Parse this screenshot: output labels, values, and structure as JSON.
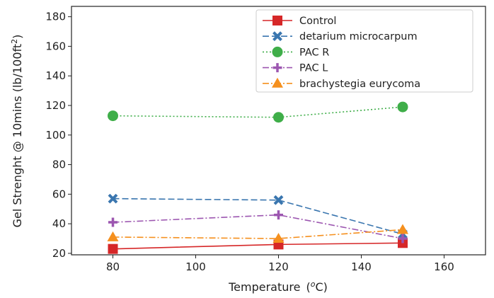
{
  "chart_data": {
    "type": "line",
    "xlabel_main": "Temperature",
    "xlabel_unit_pre": "(",
    "xlabel_unit_sup": "o",
    "xlabel_unit_post": "C)",
    "ylabel_main": "Gel Strenght @ 10mins (lb/100ft",
    "ylabel_sup": "2",
    "ylabel_post": ")",
    "xlim": [
      70,
      170
    ],
    "ylim": [
      19,
      187
    ],
    "xticks": [
      80,
      100,
      120,
      140,
      160
    ],
    "yticks": [
      20,
      40,
      60,
      80,
      100,
      120,
      140,
      160,
      180
    ],
    "grid": false,
    "legend_position": "top-right",
    "series": [
      {
        "name": "Control",
        "color": "#d62728",
        "marker": "square",
        "dash": "solid",
        "x": [
          80,
          120,
          150
        ],
        "y": [
          23,
          26,
          27
        ]
      },
      {
        "name": "detarium microcarpum",
        "color": "#3a76af",
        "marker": "x",
        "dash": "dashed",
        "x": [
          80,
          120,
          150
        ],
        "y": [
          57,
          56,
          33
        ]
      },
      {
        "name": "PAC R",
        "color": "#3fae49",
        "marker": "circle",
        "dash": "dotted",
        "x": [
          80,
          120,
          150
        ],
        "y": [
          113,
          112,
          119
        ]
      },
      {
        "name": "PAC L",
        "color": "#9c56b0",
        "marker": "plus",
        "dash": "dashdot",
        "x": [
          80,
          120,
          150
        ],
        "y": [
          41,
          46,
          30
        ]
      },
      {
        "name": "brachystegia eurycoma",
        "color": "#f5901e",
        "marker": "triangle",
        "dash": "dashdot",
        "x": [
          80,
          120,
          150
        ],
        "y": [
          31,
          30,
          36
        ]
      }
    ]
  }
}
